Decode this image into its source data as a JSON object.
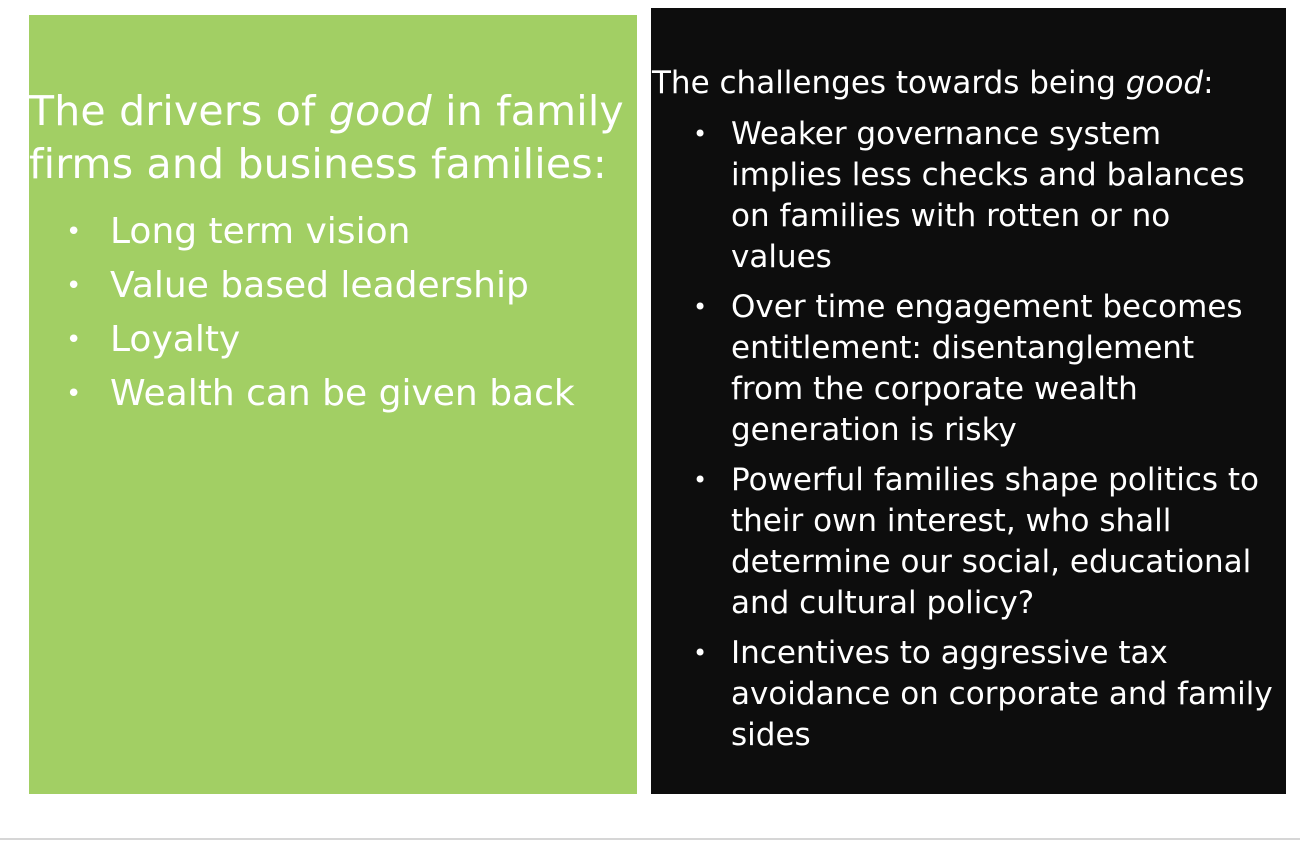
{
  "left_panel": {
    "title_prefix": "The drivers of ",
    "title_emphasis": "good",
    "title_suffix_line1": " in family",
    "title_line2": "firms and business families:",
    "bullet_glyph": "•",
    "items": [
      "Long term vision",
      "Value based leadership",
      "Loyalty",
      "Wealth can be given back"
    ],
    "background_color": "#a2cf64"
  },
  "right_panel": {
    "title_prefix": "The challenges towards being ",
    "title_emphasis": "good",
    "title_suffix": ":",
    "bullet_glyph": "•",
    "items": [
      {
        "lines": [
          "Weaker governance system",
          "implies less checks and balances",
          "on families with rotten or no",
          "values"
        ]
      },
      {
        "lines": [
          "Over time engagement becomes",
          "entitlement: disentanglement",
          "from the corporate wealth",
          "generation is risky"
        ]
      },
      {
        "lines": [
          "Powerful families shape politics to",
          "their own interest, who shall",
          "determine our social, educational",
          "and cultural policy?"
        ]
      },
      {
        "lines": [
          "Incentives to aggressive tax",
          "avoidance on corporate and family",
          "sides"
        ]
      }
    ],
    "background_color": "#0d0d0d"
  }
}
